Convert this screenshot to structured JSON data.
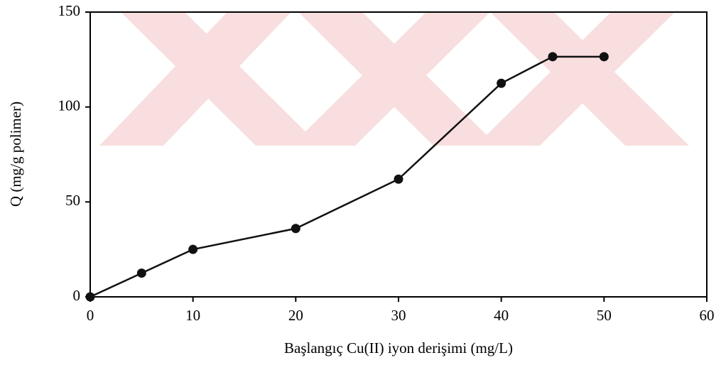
{
  "chart_data": {
    "type": "line",
    "xlabel": "Başlangıç Cu(II) iyon derişimi (mg/L)",
    "ylabel": "Q (mg/g polimer)",
    "x": [
      0,
      5,
      10,
      20,
      30,
      40,
      45,
      50
    ],
    "values": [
      0,
      12.5,
      25,
      36,
      62,
      112.5,
      126.5,
      126.5
    ],
    "color": "#111111",
    "xlim": [
      0,
      60
    ],
    "ylim": [
      0,
      150
    ],
    "xticks": [
      0,
      10,
      20,
      30,
      40,
      50,
      60
    ],
    "yticks": [
      0,
      50,
      100,
      150
    ]
  }
}
